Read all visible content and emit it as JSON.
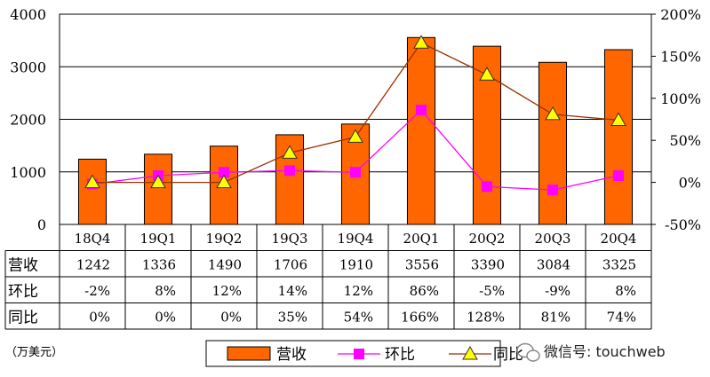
{
  "chart_data": {
    "type": "bar",
    "categories": [
      "18Q4",
      "19Q1",
      "19Q2",
      "19Q3",
      "19Q4",
      "20Q1",
      "20Q2",
      "20Q3",
      "20Q4"
    ],
    "series": [
      {
        "name": "营收",
        "type": "bar",
        "axis": "left",
        "color": "#FF6600",
        "values": [
          1242,
          1336,
          1490,
          1706,
          1910,
          3556,
          3390,
          3084,
          3325
        ],
        "labels": [
          "1242",
          "1336",
          "1490",
          "1706",
          "1910",
          "3556",
          "3390",
          "3084",
          "3325"
        ]
      },
      {
        "name": "环比",
        "type": "line",
        "axis": "right",
        "color": "#FF00FF",
        "marker": "square",
        "values": [
          -2,
          8,
          12,
          14,
          12,
          86,
          -5,
          -9,
          8
        ],
        "labels": [
          "-2%",
          "8%",
          "12%",
          "14%",
          "12%",
          "86%",
          "-5%",
          "-9%",
          "8%"
        ]
      },
      {
        "name": "同比",
        "type": "line",
        "axis": "right",
        "color": "#993300",
        "marker": "triangle",
        "marker_color": "#FFFF00",
        "values": [
          0,
          0,
          0,
          35,
          54,
          166,
          128,
          81,
          74
        ],
        "labels": [
          "0%",
          "0%",
          "0%",
          "35%",
          "54%",
          "166%",
          "128%",
          "81%",
          "74%"
        ]
      }
    ],
    "left_axis": {
      "min": 0,
      "max": 4000,
      "ticks": [
        "0",
        "1000",
        "2000",
        "3000",
        "4000"
      ]
    },
    "right_axis": {
      "min": -50,
      "max": 200,
      "ticks": [
        "-50%",
        "0%",
        "50%",
        "100%",
        "150%",
        "200%"
      ]
    },
    "grid": true,
    "legend": "bottom",
    "unit": "（万美元）",
    "watermark": "微信号: touchweb"
  }
}
